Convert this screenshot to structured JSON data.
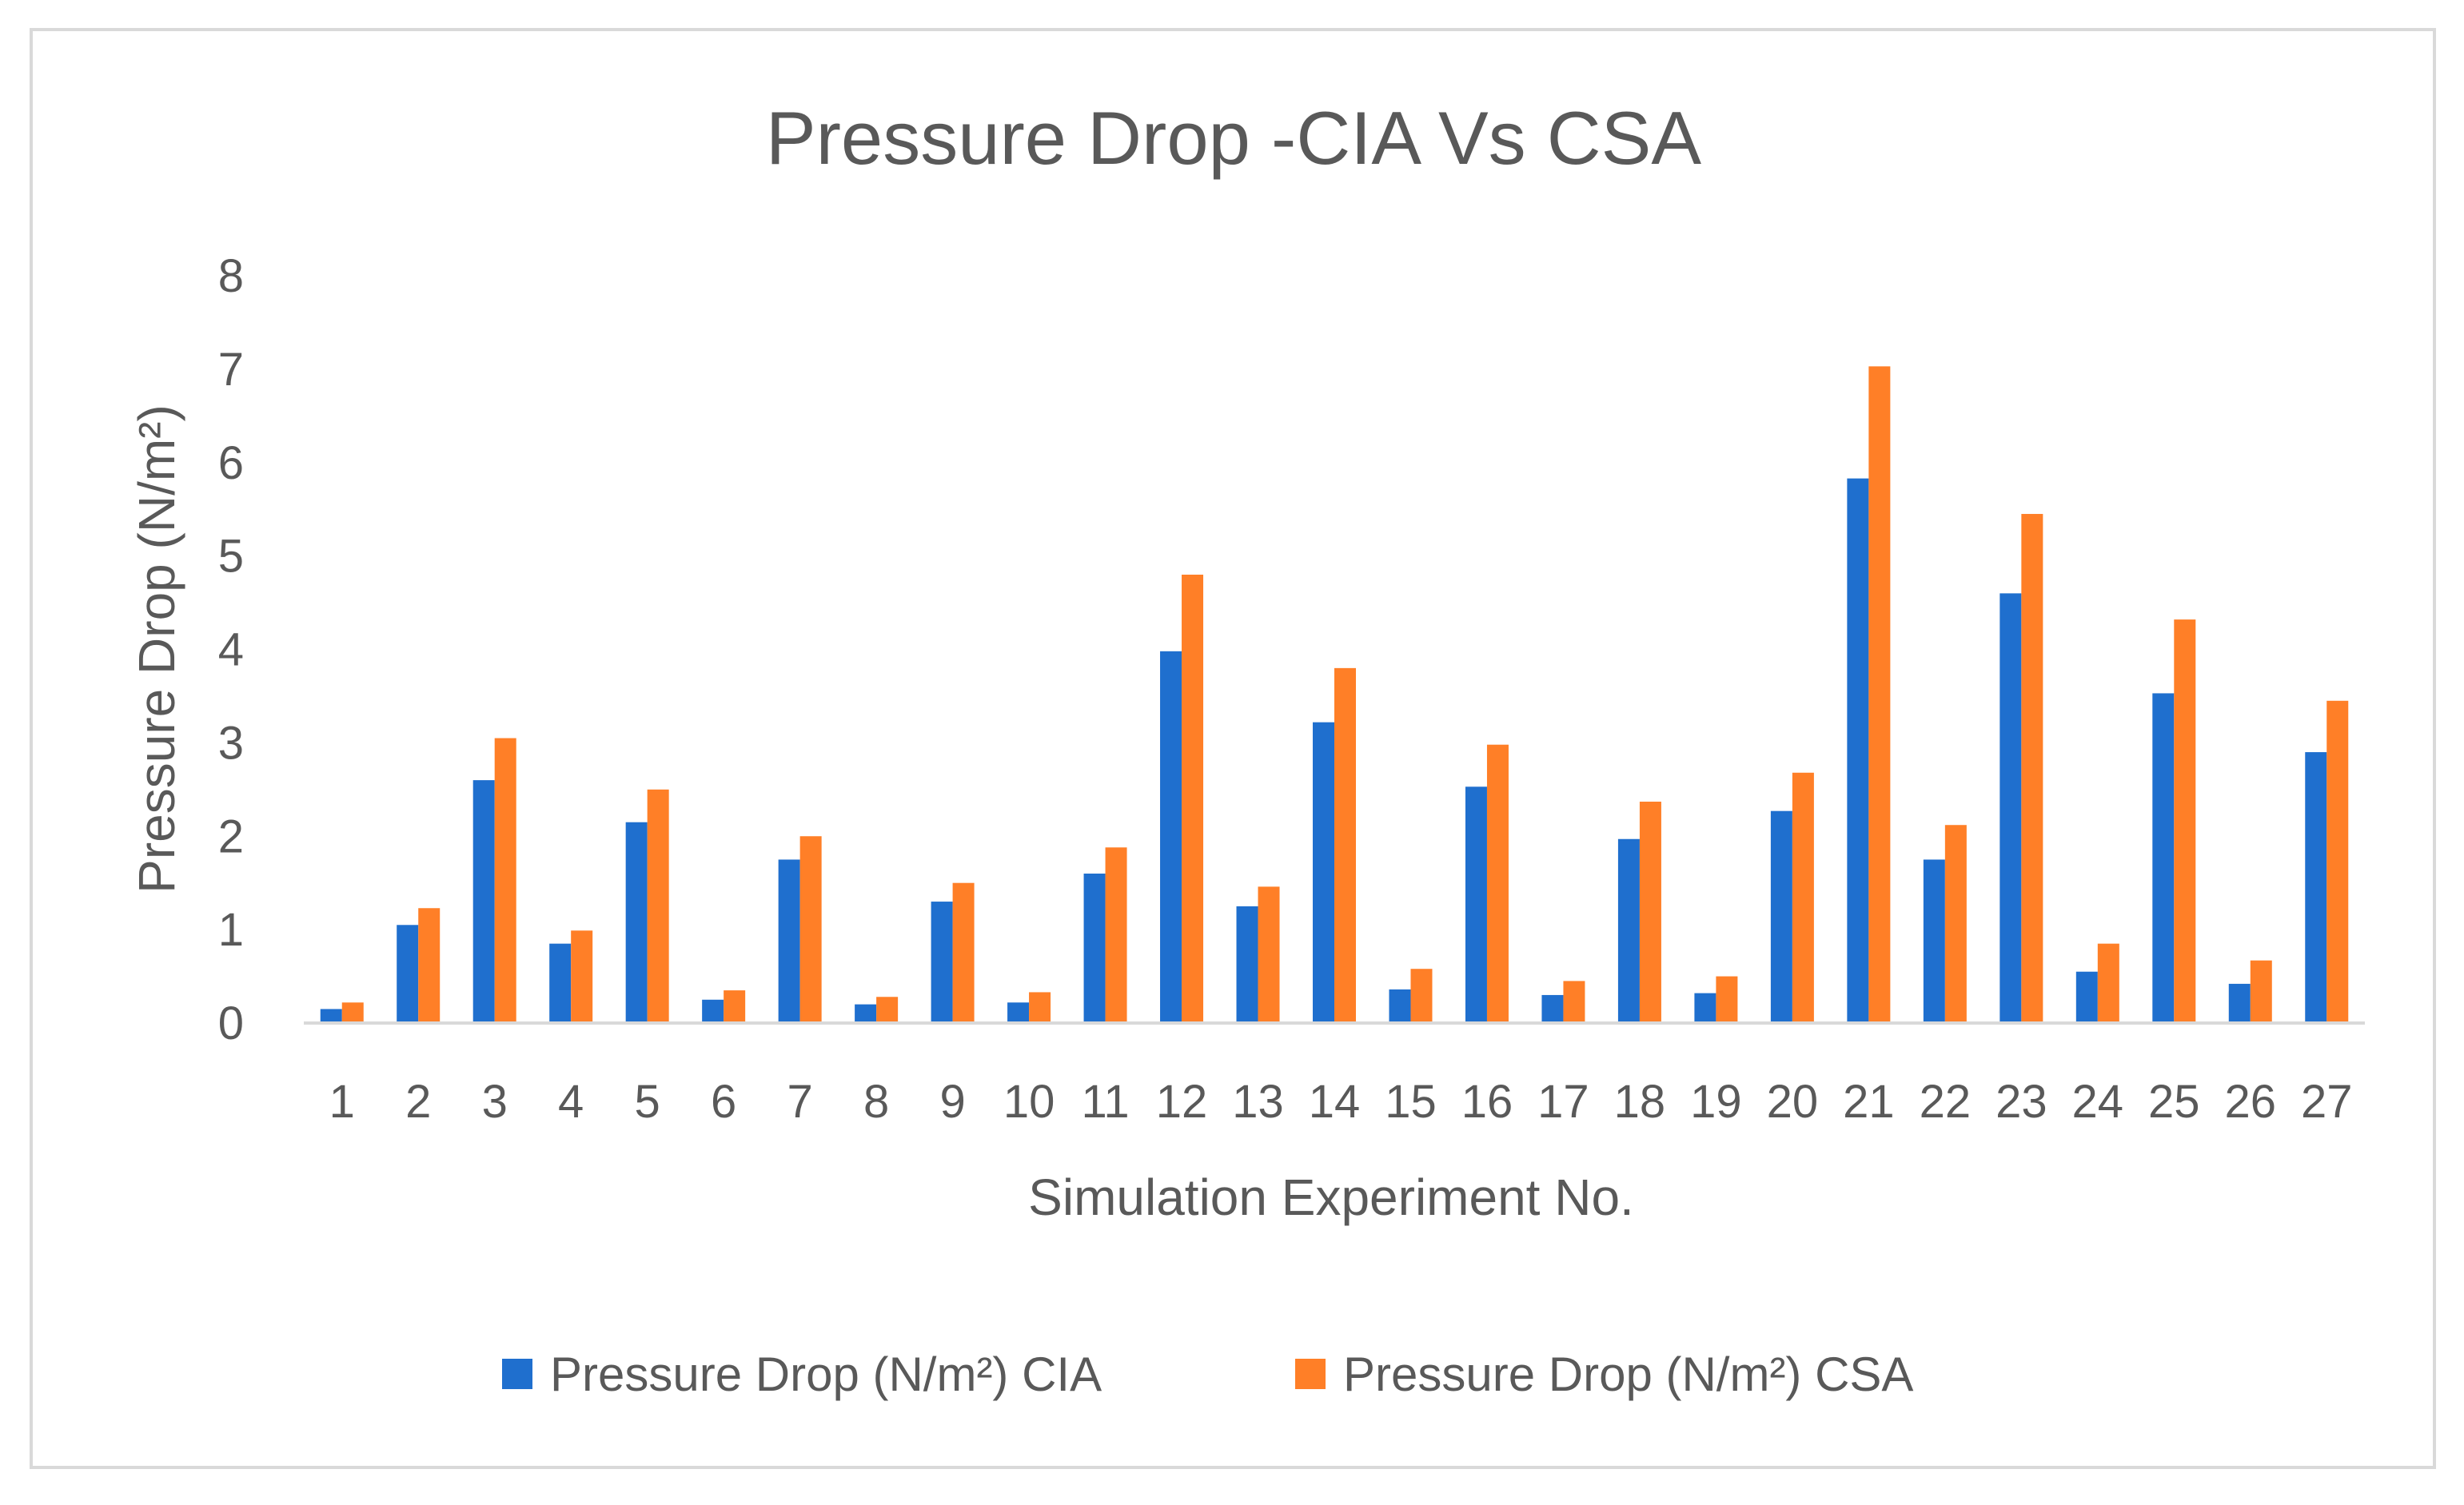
{
  "chart_data": {
    "type": "bar",
    "title": "Pressure Drop -CIA Vs CSA",
    "xlabel": "Simulation Experiment No.",
    "ylabel": "Pressure Drop (N/m²)",
    "ylim": [
      0,
      8
    ],
    "yticks": [
      "0",
      "1",
      "2",
      "3",
      "4",
      "5",
      "6",
      "7",
      "8"
    ],
    "grid": false,
    "legend_position": "bottom",
    "categories": [
      "1",
      "2",
      "3",
      "4",
      "5",
      "6",
      "7",
      "8",
      "9",
      "10",
      "11",
      "12",
      "13",
      "14",
      "15",
      "16",
      "17",
      "18",
      "19",
      "20",
      "21",
      "22",
      "23",
      "24",
      "25",
      "26",
      "27"
    ],
    "series": [
      {
        "name": "Pressure Drop (N/m²) CIA",
        "color": "#1f6fce",
        "values": [
          0.15,
          1.05,
          2.6,
          0.85,
          2.15,
          0.25,
          1.75,
          0.2,
          1.3,
          0.22,
          1.6,
          3.98,
          1.25,
          3.22,
          0.36,
          2.53,
          0.3,
          1.97,
          0.32,
          2.27,
          5.83,
          1.75,
          4.6,
          0.55,
          3.53,
          0.42,
          2.9
        ]
      },
      {
        "name": "Pressure Drop (N/m²) CSA",
        "color": "#ff7f27",
        "values": [
          0.22,
          1.23,
          3.05,
          0.99,
          2.5,
          0.35,
          2.0,
          0.28,
          1.5,
          0.33,
          1.88,
          4.8,
          1.46,
          3.8,
          0.58,
          2.98,
          0.45,
          2.37,
          0.5,
          2.68,
          7.03,
          2.12,
          5.45,
          0.85,
          4.32,
          0.67,
          3.45
        ]
      }
    ]
  }
}
